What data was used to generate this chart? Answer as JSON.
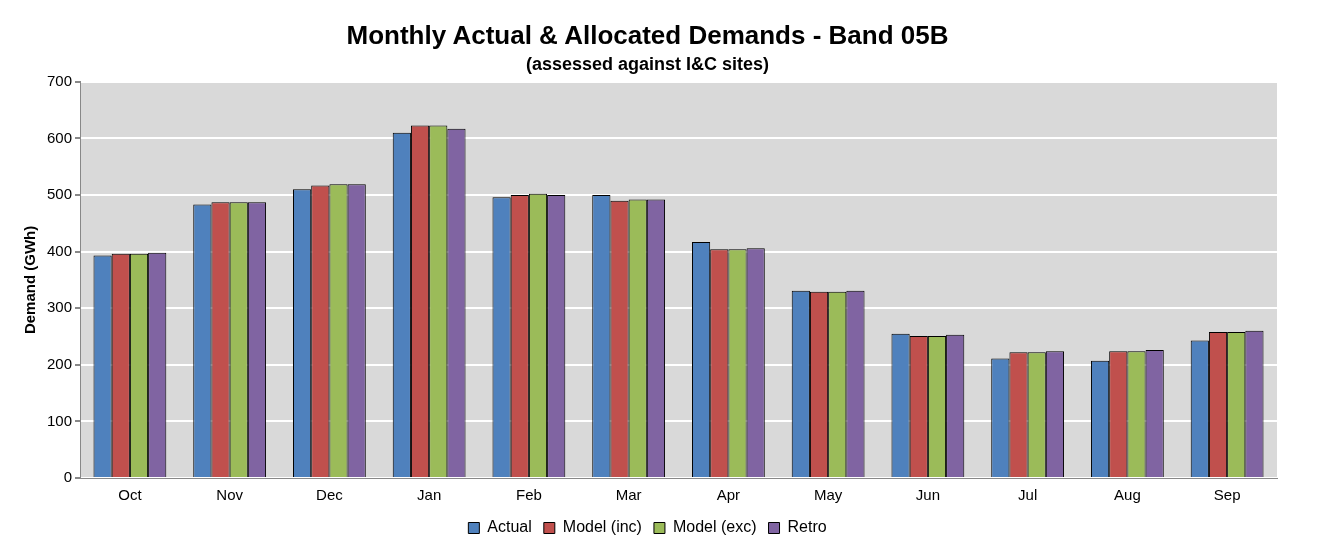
{
  "chart_data": {
    "type": "bar",
    "title": "Monthly Actual & Allocated Demands - Band 05B",
    "subtitle": "(assessed against I&C sites)",
    "ylabel": "Demand (GWh)",
    "categories": [
      "Oct",
      "Nov",
      "Dec",
      "Jan",
      "Feb",
      "Mar",
      "Apr",
      "May",
      "Jun",
      "Jul",
      "Aug",
      "Sep"
    ],
    "series": [
      {
        "name": "Actual",
        "color": "#4f81bd",
        "values": [
          393,
          483,
          510,
          610,
          496,
          500,
          417,
          331,
          255,
          211,
          207,
          243
        ]
      },
      {
        "name": "Model (inc)",
        "color": "#c0504d",
        "values": [
          396,
          487,
          517,
          623,
          500,
          490,
          404,
          329,
          251,
          222,
          224,
          258
        ]
      },
      {
        "name": "Model (exc)",
        "color": "#9bbb59",
        "values": [
          396,
          487,
          519,
          623,
          502,
          492,
          404,
          329,
          251,
          222,
          224,
          258
        ]
      },
      {
        "name": "Retro",
        "color": "#8064a2",
        "values": [
          398,
          487,
          519,
          617,
          500,
          492,
          406,
          331,
          253,
          224,
          226,
          260
        ]
      }
    ],
    "ylim": [
      0,
      700
    ],
    "yticks": [
      0,
      100,
      200,
      300,
      400,
      500,
      600,
      700
    ],
    "grid": "y",
    "legend": "bottom"
  }
}
